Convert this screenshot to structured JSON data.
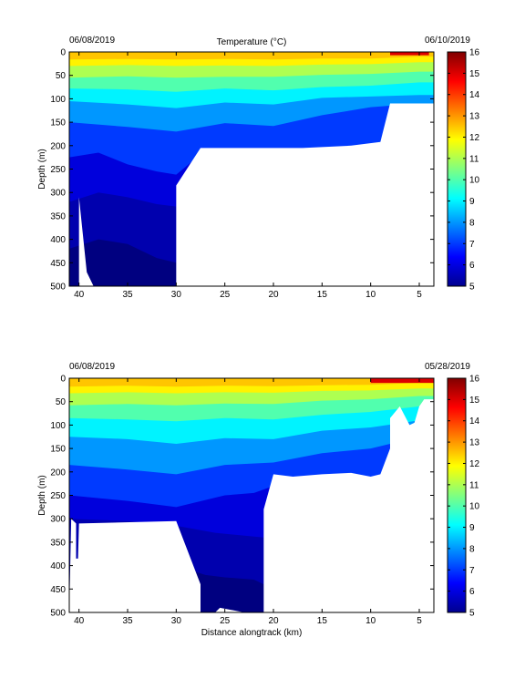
{
  "chart_data": [
    {
      "type": "heatmap",
      "title": "Temperature (°C)",
      "date_left": "06/08/2019",
      "date_right": "06/10/2019",
      "xlabel": "",
      "ylabel": "Depth (m)",
      "xlim": [
        41,
        3.5
      ],
      "ylim": [
        0,
        500
      ],
      "xticks": [
        40,
        35,
        30,
        25,
        20,
        15,
        10,
        5
      ],
      "yticks": [
        0,
        50,
        100,
        150,
        200,
        250,
        300,
        350,
        400,
        450,
        500
      ],
      "colorbar": {
        "min": 5,
        "max": 16,
        "ticks": [
          5,
          6,
          7,
          8,
          9,
          10,
          11,
          12,
          13,
          14,
          15,
          16
        ]
      },
      "bottom_profile": [
        [
          40.3,
          500
        ],
        [
          40,
          500
        ],
        [
          40,
          310
        ],
        [
          39.2,
          470
        ],
        [
          38.5,
          500
        ],
        [
          38,
          500
        ],
        [
          30,
          500
        ],
        [
          30,
          285
        ],
        [
          27.5,
          205
        ],
        [
          24,
          205
        ],
        [
          22,
          205
        ],
        [
          20,
          205
        ],
        [
          17,
          205
        ],
        [
          12,
          200
        ],
        [
          9,
          192
        ],
        [
          8,
          110
        ],
        [
          3.5,
          110
        ]
      ],
      "isotherms": [
        {
          "value": 12,
          "profile": [
            [
              41,
              16
            ],
            [
              35,
              15
            ],
            [
              30,
              16
            ],
            [
              25,
              15
            ],
            [
              20,
              16
            ],
            [
              15,
              14
            ],
            [
              10,
              14
            ],
            [
              5,
              10
            ],
            [
              3.5,
              10
            ]
          ]
        },
        {
          "value": 11,
          "profile": [
            [
              41,
              30
            ],
            [
              35,
              28
            ],
            [
              30,
              30
            ],
            [
              25,
              29
            ],
            [
              20,
              30
            ],
            [
              15,
              27
            ],
            [
              10,
              26
            ],
            [
              5,
              22
            ],
            [
              3.5,
              22
            ]
          ]
        },
        {
          "value": 10,
          "profile": [
            [
              41,
              55
            ],
            [
              35,
              52
            ],
            [
              30,
              55
            ],
            [
              25,
              53
            ],
            [
              20,
              53
            ],
            [
              15,
              49
            ],
            [
              10,
              47
            ],
            [
              5,
              42
            ],
            [
              3.5,
              42
            ]
          ]
        },
        {
          "value": 9,
          "profile": [
            [
              41,
              78
            ],
            [
              35,
              80
            ],
            [
              30,
              85
            ],
            [
              25,
              78
            ],
            [
              20,
              82
            ],
            [
              15,
              75
            ],
            [
              10,
              72
            ],
            [
              5,
              65
            ],
            [
              3.5,
              65
            ]
          ]
        },
        {
          "value": 8,
          "profile": [
            [
              41,
              105
            ],
            [
              35,
              112
            ],
            [
              30,
              120
            ],
            [
              25,
              108
            ],
            [
              20,
              112
            ],
            [
              15,
              98
            ],
            [
              10,
              95
            ],
            [
              5,
              92
            ],
            [
              3.5,
              92
            ]
          ]
        },
        {
          "value": 7,
          "profile": [
            [
              41,
              150
            ],
            [
              35,
              160
            ],
            [
              30,
              170
            ],
            [
              25,
              152
            ],
            [
              20,
              158
            ],
            [
              15,
              135
            ],
            [
              10,
              118
            ],
            [
              5,
              110
            ],
            [
              3.5,
              110
            ]
          ]
        },
        {
          "value": 6,
          "profile": [
            [
              41,
              225
            ],
            [
              38,
              215
            ],
            [
              35,
              240
            ],
            [
              32,
              255
            ],
            [
              30,
              262
            ],
            [
              27,
              210
            ],
            [
              20,
              210
            ],
            [
              15,
              205
            ],
            [
              10,
              200
            ]
          ]
        },
        {
          "value": 5.5,
          "profile": [
            [
              41,
              320
            ],
            [
              38,
              300
            ],
            [
              35,
              310
            ],
            [
              32,
              325
            ],
            [
              30,
              330
            ]
          ]
        },
        {
          "value": 5,
          "profile": [
            [
              41,
              420
            ],
            [
              38,
              400
            ],
            [
              35,
              410
            ],
            [
              32,
              440
            ],
            [
              30,
              450
            ]
          ]
        }
      ],
      "warm_spot": {
        "x": [
          8,
          4
        ],
        "y": [
          0,
          7
        ],
        "value": 15
      }
    },
    {
      "type": "heatmap",
      "title": "",
      "date_left": "06/08/2019",
      "date_right": "05/28/2019",
      "xlabel": "Distance alongtrack (km)",
      "ylabel": "Depth (m)",
      "xlim": [
        41,
        3.5
      ],
      "ylim": [
        0,
        500
      ],
      "xticks": [
        40,
        35,
        30,
        25,
        20,
        15,
        10,
        5
      ],
      "yticks": [
        0,
        50,
        100,
        150,
        200,
        250,
        300,
        350,
        400,
        450,
        500
      ],
      "colorbar": {
        "min": 5,
        "max": 16,
        "ticks": [
          5,
          6,
          7,
          8,
          9,
          10,
          11,
          12,
          13,
          14,
          15,
          16
        ]
      },
      "bottom_profile": [
        [
          40.8,
          300
        ],
        [
          40.3,
          310
        ],
        [
          40.3,
          385
        ],
        [
          40.1,
          385
        ],
        [
          40,
          310
        ],
        [
          30,
          305
        ],
        [
          27.5,
          440
        ],
        [
          27.5,
          500
        ],
        [
          26,
          500
        ],
        [
          25.5,
          490
        ],
        [
          23,
          500
        ],
        [
          21,
          500
        ],
        [
          21,
          280
        ],
        [
          20,
          205
        ],
        [
          18,
          210
        ],
        [
          15,
          205
        ],
        [
          12,
          202
        ],
        [
          10,
          210
        ],
        [
          9,
          205
        ],
        [
          8,
          150
        ],
        [
          8,
          85
        ],
        [
          7,
          60
        ],
        [
          6,
          100
        ],
        [
          5.5,
          95
        ],
        [
          5,
          60
        ],
        [
          4.5,
          45
        ],
        [
          3.5,
          45
        ]
      ],
      "isotherms": [
        {
          "value": 12,
          "profile": [
            [
              41,
              18
            ],
            [
              35,
              16
            ],
            [
              30,
              18
            ],
            [
              25,
              16
            ],
            [
              20,
              17
            ],
            [
              15,
              15
            ],
            [
              10,
              14
            ],
            [
              5,
              10
            ],
            [
              3.5,
              10
            ]
          ]
        },
        {
          "value": 11,
          "profile": [
            [
              41,
              32
            ],
            [
              35,
              30
            ],
            [
              30,
              32
            ],
            [
              25,
              30
            ],
            [
              20,
              31
            ],
            [
              15,
              27
            ],
            [
              10,
              26
            ],
            [
              5,
              22
            ],
            [
              3.5,
              22
            ]
          ]
        },
        {
          "value": 10,
          "profile": [
            [
              41,
              58
            ],
            [
              35,
              55
            ],
            [
              30,
              58
            ],
            [
              25,
              54
            ],
            [
              20,
              55
            ],
            [
              15,
              48
            ],
            [
              10,
              45
            ],
            [
              5,
              38
            ],
            [
              3.5,
              38
            ]
          ]
        },
        {
          "value": 9,
          "profile": [
            [
              41,
              85
            ],
            [
              35,
              88
            ],
            [
              30,
              92
            ],
            [
              25,
              85
            ],
            [
              20,
              88
            ],
            [
              15,
              78
            ],
            [
              10,
              72
            ],
            [
              5,
              60
            ],
            [
              3.5,
              60
            ]
          ]
        },
        {
          "value": 8,
          "profile": [
            [
              41,
              125
            ],
            [
              35,
              130
            ],
            [
              30,
              140
            ],
            [
              25,
              128
            ],
            [
              20,
              130
            ],
            [
              15,
              112
            ],
            [
              10,
              105
            ],
            [
              5,
              90
            ],
            [
              3.5,
              90
            ]
          ]
        },
        {
          "value": 7,
          "profile": [
            [
              41,
              185
            ],
            [
              35,
              195
            ],
            [
              30,
              205
            ],
            [
              25,
              185
            ],
            [
              20,
              180
            ],
            [
              15,
              160
            ],
            [
              10,
              150
            ],
            [
              8,
              140
            ]
          ]
        },
        {
          "value": 6,
          "profile": [
            [
              41,
              250
            ],
            [
              35,
              262
            ],
            [
              30,
              275
            ],
            [
              25,
              250
            ],
            [
              22,
              245
            ],
            [
              20,
              230
            ]
          ]
        },
        {
          "value": 5.5,
          "profile": [
            [
              41,
              300
            ],
            [
              35,
              305
            ],
            [
              30,
              315
            ],
            [
              26,
              330
            ],
            [
              21,
              340
            ]
          ]
        },
        {
          "value": 5,
          "profile": [
            [
              30,
              400
            ],
            [
              27,
              420
            ],
            [
              25,
              425
            ],
            [
              22,
              430
            ],
            [
              21,
              440
            ]
          ]
        }
      ],
      "warm_spot": {
        "x": [
          10,
          3.5
        ],
        "y": [
          0,
          10
        ],
        "value": 15
      }
    }
  ]
}
